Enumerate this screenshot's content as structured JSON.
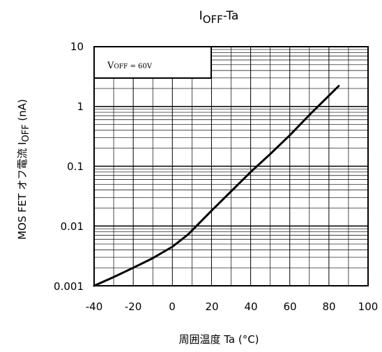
{
  "chart_data": {
    "type": "line",
    "title": {
      "main": "I",
      "sub": "OFF",
      "rest": "-Ta"
    },
    "xlabel": "周囲温度  Ta (°C)",
    "ylabel": {
      "prefix": "MOS FET  オフ電流  I",
      "sub": "OFF",
      "suffix": " (nA)"
    },
    "x": [
      -40,
      -30,
      -20,
      -10,
      0,
      8,
      20,
      30,
      40,
      50,
      60,
      70,
      85
    ],
    "series": [
      {
        "values": [
          0.001,
          0.0014,
          0.002,
          0.0029,
          0.0045,
          0.0072,
          0.018,
          0.038,
          0.08,
          0.16,
          0.33,
          0.72,
          2.2
        ]
      }
    ],
    "xlim": [
      -40,
      100
    ],
    "ylim": [
      0.001,
      10
    ],
    "yscale": "log",
    "xticks": [
      "-40",
      "-20",
      "0",
      "20",
      "40",
      "60",
      "80",
      "100"
    ],
    "yticks": [
      "10",
      "1",
      "0.1",
      "0.01",
      "0.001"
    ],
    "grid": true,
    "annotation": {
      "main": "V",
      "sub": "OFF",
      "rest": " = 60V"
    }
  }
}
